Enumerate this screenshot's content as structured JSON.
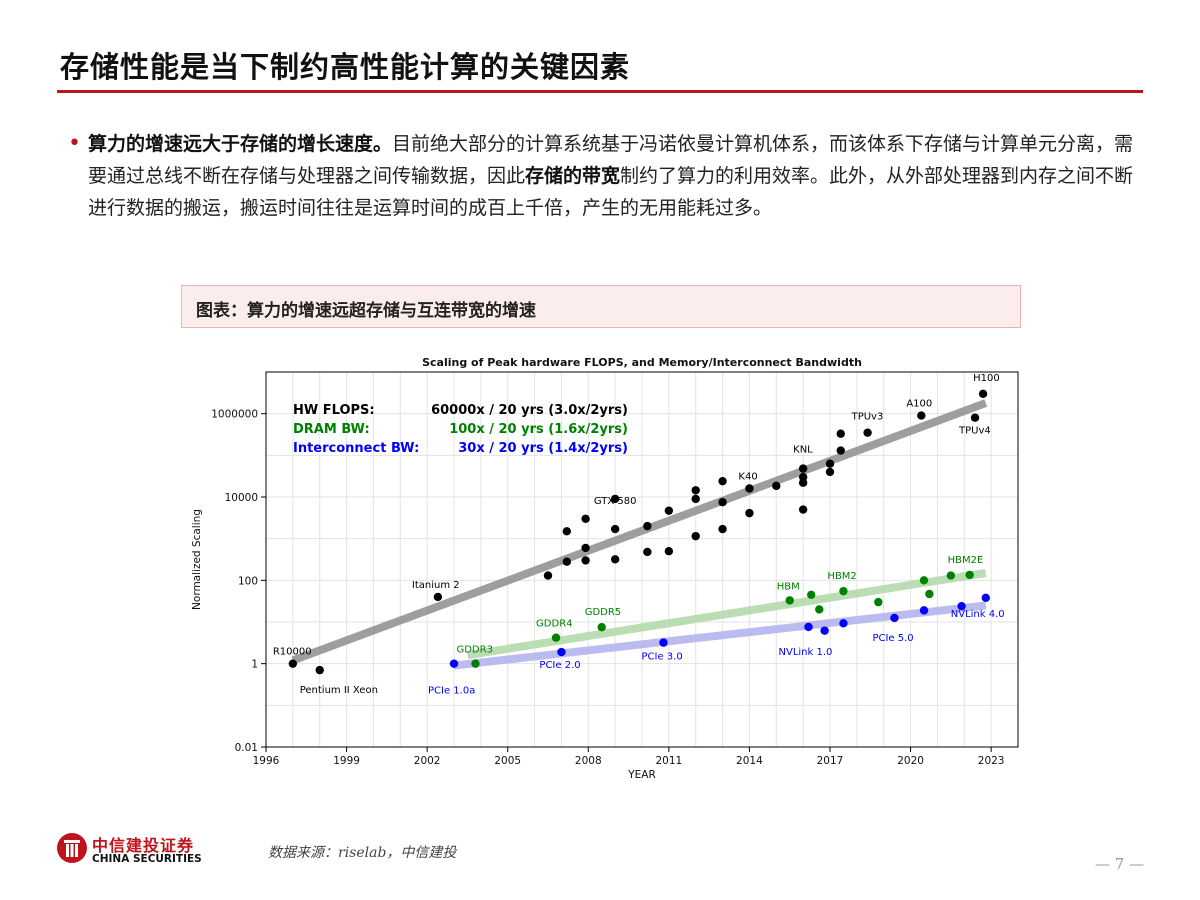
{
  "page": {
    "title": "存储性能是当下制约高性能计算的关键因素",
    "bullet": {
      "bold_lead": "算力的增速远大于存储的增长速度。",
      "text_1": "目前绝大部分的计算系统基于冯诺依曼计算机体系，而该体系下存储与计算单元分离，需要通过总线不断在存储与处理器之间传输数据，因此",
      "bold_mid": "存储的带宽",
      "text_2": "制约了算力的利用效率。此外，从外部处理器到内存之间不断进行数据的搬运，搬运时间往往是运算时间的成百上千倍，产生的无用能耗过多。"
    },
    "caption": "图表：算力的增速远超存储与互连带宽的增速",
    "source": "数据来源：riselab，中信建投",
    "page_number": "— 7 —",
    "logo": {
      "cn": "中信建投证券",
      "en": "CHINA SECURITIES"
    }
  },
  "colors": {
    "accent": "#c0141c",
    "flops": "#000000",
    "dram": "#008000",
    "interconnect": "#0000ff",
    "flops_trend": "#999999",
    "dram_trend": "#b8dcb0",
    "interconnect_trend": "#b8b8f0"
  },
  "chart_data": {
    "type": "scatter",
    "title": "Scaling of Peak hardware FLOPS, and Memory/Interconnect Bandwidth",
    "xlabel": "YEAR",
    "ylabel": "Normalized Scaling",
    "xlim": [
      1996,
      2024
    ],
    "ylim": [
      0.01,
      10000000
    ],
    "yscale": "log",
    "xticks": [
      1996,
      1999,
      2002,
      2005,
      2008,
      2011,
      2014,
      2017,
      2020,
      2023
    ],
    "yticks": [
      {
        "v": 0.01,
        "label": "0.01"
      },
      {
        "v": 1,
        "label": "1"
      },
      {
        "v": 100,
        "label": "100"
      },
      {
        "v": 10000,
        "label": "10000"
      },
      {
        "v": 1000000,
        "label": "1000000"
      }
    ],
    "grid": true,
    "legend_placement": "top-left",
    "legend": [
      {
        "name": "HW FLOPS:",
        "value": "60000x / 20 yrs (3.0x/2yrs)",
        "color": "#000000"
      },
      {
        "name": "DRAM BW:",
        "value": "100x / 20 yrs (1.6x/2yrs)",
        "color": "#008000"
      },
      {
        "name": "Interconnect BW:",
        "value": "30x / 20 yrs (1.4x/2yrs)",
        "color": "#0000ff"
      }
    ],
    "series": [
      {
        "key": "flops",
        "points": [
          [
            1997,
            1
          ],
          [
            1998,
            0.7
          ],
          [
            2002.4,
            40
          ],
          [
            2006.5,
            130
          ],
          [
            2007.2,
            280
          ],
          [
            2007.2,
            1500
          ],
          [
            2007.9,
            300
          ],
          [
            2007.9,
            3000
          ],
          [
            2007.9,
            600
          ],
          [
            2009,
            320
          ],
          [
            2009,
            1700
          ],
          [
            2009,
            9000
          ],
          [
            2010.2,
            2000
          ],
          [
            2010.2,
            480
          ],
          [
            2011,
            500
          ],
          [
            2011,
            4700
          ],
          [
            2012,
            1150
          ],
          [
            2012,
            9000
          ],
          [
            2012,
            14500
          ],
          [
            2013,
            1700
          ],
          [
            2013,
            7500
          ],
          [
            2013,
            24000
          ],
          [
            2014,
            16000
          ],
          [
            2014,
            4100
          ],
          [
            2015,
            18500
          ],
          [
            2016,
            5000
          ],
          [
            2016,
            22000
          ],
          [
            2016,
            30000
          ],
          [
            2016,
            48000
          ],
          [
            2017,
            40000
          ],
          [
            2017,
            63000
          ],
          [
            2017.4,
            130000
          ],
          [
            2017.4,
            330000
          ],
          [
            2018.4,
            350000
          ],
          [
            2020.4,
            900000
          ],
          [
            2022.4,
            800000
          ],
          [
            2022.7,
            3000000
          ]
        ],
        "trend": [
          [
            1997,
            1.2
          ],
          [
            2022.8,
            1800000
          ]
        ]
      },
      {
        "key": "dram",
        "points": [
          [
            2003.8,
            1
          ],
          [
            2006.8,
            4.2
          ],
          [
            2008.5,
            7.5
          ],
          [
            2015.5,
            33
          ],
          [
            2016.3,
            45
          ],
          [
            2016.6,
            20
          ],
          [
            2017.5,
            55
          ],
          [
            2018.8,
            30
          ],
          [
            2020.5,
            100
          ],
          [
            2020.7,
            47
          ],
          [
            2021.5,
            130
          ],
          [
            2022.2,
            135
          ]
        ],
        "trend": [
          [
            2003.5,
            1.6
          ],
          [
            2022.8,
            150
          ]
        ]
      },
      {
        "key": "interconnect",
        "points": [
          [
            2003,
            1
          ],
          [
            2007,
            1.9
          ],
          [
            2010.8,
            3.2
          ],
          [
            2016.2,
            7.6
          ],
          [
            2016.8,
            6.2
          ],
          [
            2017.5,
            9.3
          ],
          [
            2019.4,
            12.5
          ],
          [
            2020.5,
            19
          ],
          [
            2021.9,
            24
          ],
          [
            2022.8,
            38
          ]
        ],
        "trend": [
          [
            2003,
            0.9
          ],
          [
            2022.8,
            25
          ]
        ]
      }
    ],
    "annotations": [
      {
        "text": "R10000",
        "x": 1997,
        "y": 1,
        "color": "#000000"
      },
      {
        "text": "Pentium II Xeon",
        "x": 1998,
        "y": 0.7,
        "color": "#000000"
      },
      {
        "text": "Itanium 2",
        "x": 2002.4,
        "y": 40,
        "color": "#000000"
      },
      {
        "text": "GTX 580",
        "x": 2010.8,
        "y": 9000,
        "color": "#000000"
      },
      {
        "text": "K40",
        "x": 2014,
        "y": 16000,
        "color": "#000000"
      },
      {
        "text": "KNL",
        "x": 2016,
        "y": 48000,
        "color": "#000000"
      },
      {
        "text": "TPUv3",
        "x": 2018.4,
        "y": 350000,
        "color": "#000000"
      },
      {
        "text": "A100",
        "x": 2020.4,
        "y": 900000,
        "color": "#000000"
      },
      {
        "text": "H100",
        "x": 2022.7,
        "y": 3000000,
        "color": "#000000"
      },
      {
        "text": "TPUv4",
        "x": 2022.4,
        "y": 800000,
        "color": "#000000"
      },
      {
        "text": "GDDR3",
        "x": 2003.8,
        "y": 1,
        "color": "#008000"
      },
      {
        "text": "GDDR4",
        "x": 2006.8,
        "y": 4.2,
        "color": "#008000"
      },
      {
        "text": "GDDR5",
        "x": 2008.5,
        "y": 7.5,
        "color": "#008000"
      },
      {
        "text": "HBM",
        "x": 2015.5,
        "y": 33,
        "color": "#008000"
      },
      {
        "text": "HBM2",
        "x": 2017.5,
        "y": 55,
        "color": "#008000"
      },
      {
        "text": "HBM2E",
        "x": 2022.2,
        "y": 135,
        "color": "#008000"
      },
      {
        "text": "PCIe 1.0a",
        "x": 2003,
        "y": 1,
        "color": "#0000ff"
      },
      {
        "text": "PCIe 2.0",
        "x": 2007,
        "y": 1.9,
        "color": "#0000ff"
      },
      {
        "text": "PCIe 3.0",
        "x": 2010.8,
        "y": 3.2,
        "color": "#0000ff"
      },
      {
        "text": "NVLink 1.0",
        "x": 2016.2,
        "y": 7.6,
        "color": "#0000ff"
      },
      {
        "text": "PCIe 5.0",
        "x": 2019.4,
        "y": 12.5,
        "color": "#0000ff"
      },
      {
        "text": "NVLink 4.0",
        "x": 2022.8,
        "y": 38,
        "color": "#0000ff"
      }
    ]
  }
}
